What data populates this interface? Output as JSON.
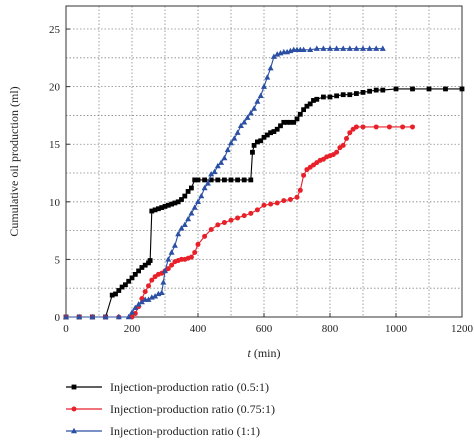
{
  "chart_data": {
    "type": "line",
    "xlabel_italic": "t",
    "xlabel_rest": " (min)",
    "ylabel": "Cumulative oil production (ml)",
    "xlim": [
      0,
      1200
    ],
    "ylim": [
      0,
      27
    ],
    "xticks": [
      0,
      200,
      400,
      600,
      800,
      1000,
      1200
    ],
    "yticks": [
      0,
      5,
      10,
      15,
      20,
      25
    ],
    "grid": true,
    "legend_position": "bottom",
    "series": [
      {
        "name": "Injection-production ratio (0.5:1)",
        "color": "#000000",
        "marker": "square",
        "x": [
          0,
          40,
          80,
          120,
          140,
          150,
          160,
          170,
          180,
          190,
          200,
          210,
          220,
          230,
          240,
          250,
          255,
          260,
          270,
          280,
          290,
          300,
          310,
          320,
          330,
          340,
          350,
          360,
          370,
          380,
          390,
          400,
          420,
          440,
          460,
          480,
          500,
          520,
          540,
          560,
          565,
          570,
          580,
          590,
          600,
          610,
          620,
          630,
          640,
          650,
          660,
          670,
          680,
          690,
          700,
          710,
          720,
          730,
          740,
          750,
          760,
          780,
          800,
          820,
          840,
          860,
          880,
          900,
          920,
          940,
          960,
          1000,
          1050,
          1100,
          1150,
          1200
        ],
        "y": [
          0,
          0,
          0,
          0,
          1.9,
          2.0,
          2.3,
          2.6,
          2.8,
          3.1,
          3.4,
          3.7,
          4.0,
          4.3,
          4.5,
          4.7,
          4.9,
          9.2,
          9.3,
          9.4,
          9.5,
          9.6,
          9.7,
          9.8,
          9.9,
          10.0,
          10.2,
          10.5,
          10.9,
          11.2,
          11.9,
          11.9,
          11.9,
          11.9,
          11.9,
          11.9,
          11.9,
          11.9,
          11.9,
          11.9,
          14.3,
          14.9,
          15.2,
          15.3,
          15.6,
          15.8,
          16.0,
          16.1,
          16.3,
          16.6,
          16.9,
          16.9,
          16.9,
          16.9,
          17.2,
          17.6,
          18.0,
          18.3,
          18.5,
          18.8,
          18.9,
          19.1,
          19.1,
          19.2,
          19.3,
          19.3,
          19.4,
          19.5,
          19.6,
          19.7,
          19.7,
          19.8,
          19.8,
          19.8,
          19.8,
          19.8
        ]
      },
      {
        "name": "Injection-production ratio (0.75:1)",
        "color": "#e8202a",
        "marker": "circle",
        "x": [
          0,
          40,
          80,
          120,
          160,
          200,
          210,
          220,
          230,
          240,
          250,
          260,
          270,
          280,
          290,
          300,
          310,
          320,
          330,
          340,
          350,
          360,
          370,
          380,
          390,
          400,
          420,
          440,
          460,
          480,
          500,
          520,
          540,
          560,
          580,
          600,
          620,
          640,
          660,
          680,
          700,
          710,
          720,
          730,
          740,
          750,
          760,
          770,
          780,
          790,
          800,
          810,
          820,
          830,
          840,
          850,
          860,
          870,
          880,
          900,
          940,
          980,
          1020,
          1050
        ],
        "y": [
          0,
          0,
          0,
          0,
          0,
          0,
          0.3,
          0.9,
          1.6,
          2.2,
          2.7,
          3.2,
          3.5,
          3.7,
          3.8,
          4.0,
          4.2,
          4.5,
          4.8,
          4.9,
          5.0,
          5.0,
          5.1,
          5.2,
          5.6,
          6.3,
          7.0,
          7.6,
          8.0,
          8.2,
          8.4,
          8.6,
          8.8,
          9.0,
          9.3,
          9.7,
          9.8,
          9.9,
          10.1,
          10.2,
          10.4,
          11.0,
          12.3,
          12.8,
          13.0,
          13.2,
          13.4,
          13.6,
          13.7,
          13.9,
          14.0,
          14.1,
          14.3,
          14.7,
          14.9,
          15.5,
          16.0,
          16.3,
          16.5,
          16.5,
          16.5,
          16.5,
          16.5,
          16.5
        ]
      },
      {
        "name": "Injection-production ratio (1:1)",
        "color": "#2b4fa3",
        "marker": "triangle",
        "x": [
          0,
          40,
          80,
          120,
          160,
          190,
          200,
          210,
          220,
          230,
          240,
          250,
          260,
          270,
          280,
          290,
          295,
          300,
          310,
          320,
          330,
          340,
          350,
          360,
          370,
          380,
          390,
          400,
          410,
          420,
          430,
          440,
          450,
          460,
          470,
          480,
          490,
          500,
          510,
          520,
          530,
          540,
          550,
          560,
          570,
          580,
          590,
          600,
          610,
          620,
          630,
          640,
          650,
          660,
          670,
          680,
          690,
          700,
          710,
          720,
          740,
          760,
          780,
          800,
          820,
          840,
          860,
          880,
          900,
          920,
          940,
          960
        ],
        "y": [
          0,
          0,
          0,
          0,
          0,
          0,
          0.4,
          0.8,
          1.1,
          1.3,
          1.5,
          1.5,
          1.7,
          1.8,
          2.0,
          2.1,
          3.0,
          4.0,
          5.0,
          5.6,
          6.2,
          7.2,
          7.7,
          8.0,
          8.5,
          9.0,
          9.5,
          10.0,
          10.5,
          11.2,
          11.6,
          12.4,
          12.6,
          13.1,
          13.4,
          13.8,
          14.5,
          15.1,
          15.5,
          16.0,
          16.6,
          16.9,
          17.3,
          17.7,
          18.1,
          18.7,
          19.2,
          20.0,
          20.8,
          21.6,
          22.6,
          22.8,
          22.9,
          23.0,
          23.0,
          23.1,
          23.2,
          23.2,
          23.2,
          23.2,
          23.2,
          23.3,
          23.3,
          23.3,
          23.3,
          23.3,
          23.3,
          23.3,
          23.3,
          23.3,
          23.3,
          23.3
        ]
      }
    ]
  }
}
